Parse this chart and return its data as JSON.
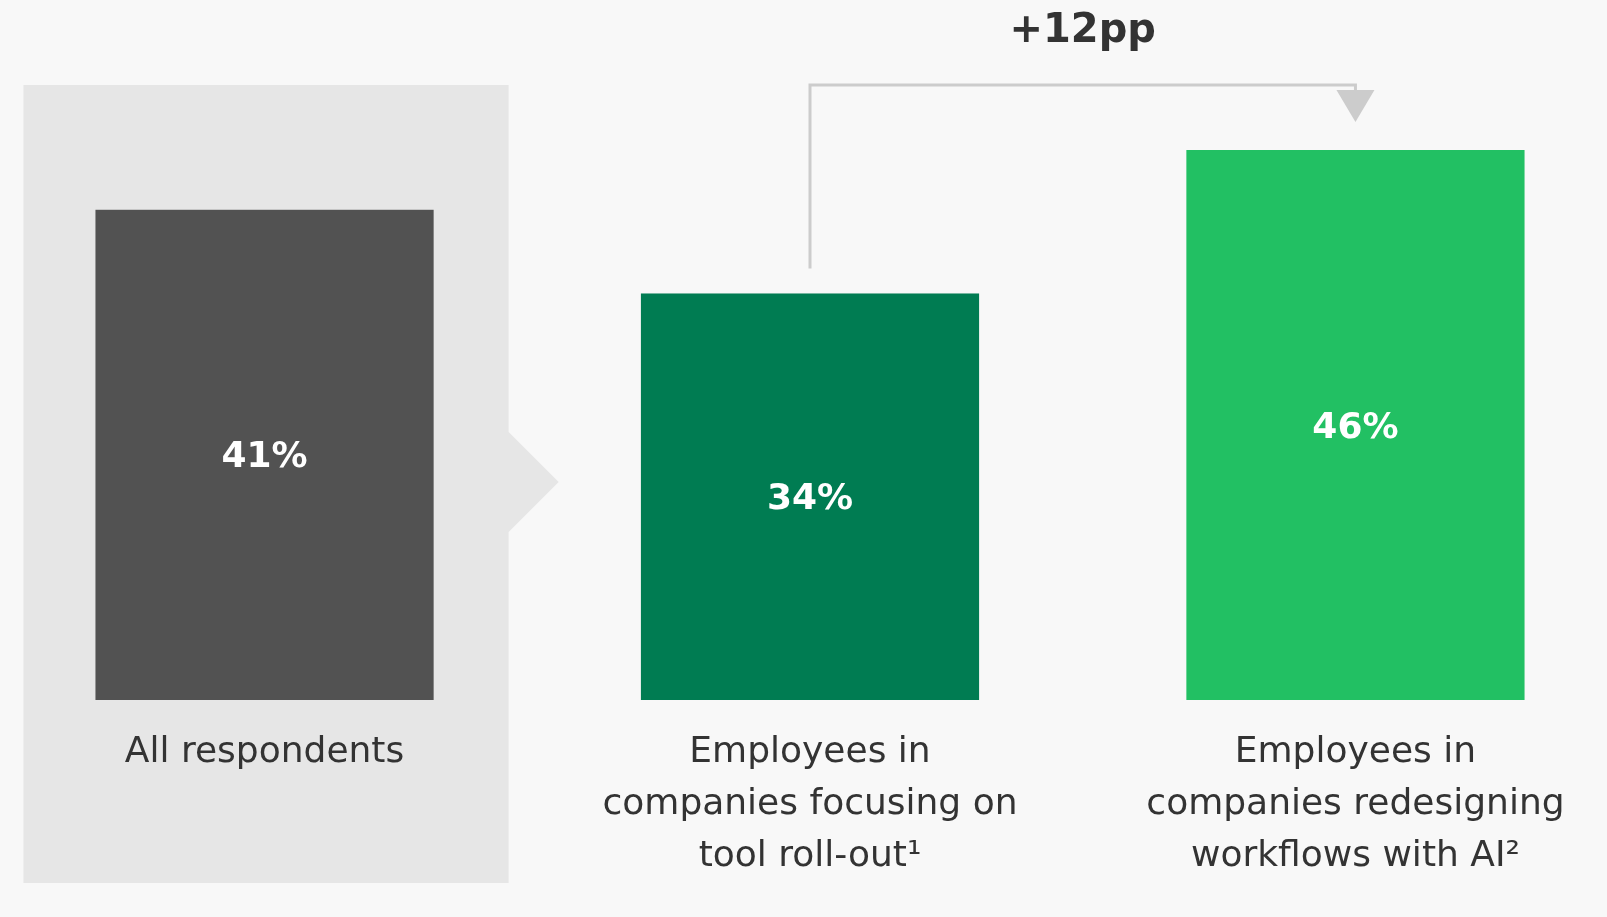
{
  "chart_data": {
    "type": "bar",
    "categories": [
      "All respondents",
      "Employees in companies focusing on tool roll-out¹",
      "Employees in companies redesigning workflows with AI²"
    ],
    "values": [
      41,
      34,
      46
    ],
    "colors": [
      "#525252",
      "#007c52",
      "#22c063"
    ],
    "value_labels": [
      "41%",
      "34%",
      "46%"
    ],
    "annotations": [
      "+12pp"
    ]
  }
}
